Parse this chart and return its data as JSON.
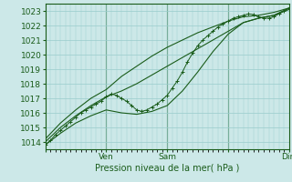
{
  "title": "",
  "xlabel": "Pression niveau de la mer( hPa )",
  "ylabel": "",
  "ylim": [
    1013.5,
    1023.5
  ],
  "xlim": [
    0,
    96
  ],
  "yticks": [
    1014,
    1015,
    1016,
    1017,
    1018,
    1019,
    1020,
    1021,
    1022,
    1023
  ],
  "xtick_positions": [
    0,
    24,
    48,
    72,
    96
  ],
  "xtick_labels": [
    "",
    "Ven",
    "Sam",
    "",
    "Dim"
  ],
  "bg_color": "#cce8e8",
  "grid_color": "#99cccc",
  "line_color": "#1a5c1a",
  "marker_color": "#1a5c1a",
  "series_main": [
    0,
    1013.8,
    2,
    1014.1,
    4,
    1014.5,
    6,
    1014.8,
    8,
    1015.1,
    10,
    1015.4,
    12,
    1015.7,
    14,
    1016.0,
    16,
    1016.2,
    18,
    1016.4,
    20,
    1016.6,
    22,
    1016.8,
    24,
    1017.1,
    26,
    1017.3,
    28,
    1017.2,
    30,
    1017.0,
    32,
    1016.8,
    34,
    1016.5,
    36,
    1016.2,
    38,
    1016.1,
    40,
    1016.2,
    42,
    1016.4,
    44,
    1016.6,
    46,
    1016.9,
    48,
    1017.2,
    50,
    1017.7,
    52,
    1018.2,
    54,
    1018.8,
    56,
    1019.5,
    58,
    1020.1,
    60,
    1020.6,
    62,
    1021.0,
    64,
    1021.3,
    66,
    1021.6,
    68,
    1021.9,
    70,
    1022.1,
    72,
    1022.3,
    74,
    1022.5,
    76,
    1022.6,
    78,
    1022.7,
    80,
    1022.8,
    82,
    1022.75,
    84,
    1022.6,
    86,
    1022.5,
    88,
    1022.5,
    90,
    1022.6,
    92,
    1022.8,
    94,
    1023.0,
    96,
    1023.2
  ],
  "series_high_early": [
    0,
    1014.2,
    6,
    1015.3,
    12,
    1016.2,
    18,
    1017.0,
    24,
    1017.6,
    30,
    1018.5,
    36,
    1019.2,
    42,
    1019.9,
    48,
    1020.5,
    54,
    1021.0,
    60,
    1021.5,
    66,
    1021.9,
    72,
    1022.3,
    78,
    1022.6,
    84,
    1022.7,
    90,
    1022.9,
    96,
    1023.2
  ],
  "series_mid1": [
    0,
    1014.0,
    6,
    1015.0,
    12,
    1015.8,
    18,
    1016.5,
    24,
    1017.1,
    30,
    1017.5,
    36,
    1018.0,
    42,
    1018.6,
    48,
    1019.2,
    54,
    1019.8,
    60,
    1020.4,
    66,
    1021.0,
    72,
    1021.6,
    78,
    1022.2,
    84,
    1022.5,
    90,
    1022.7,
    96,
    1023.2
  ],
  "series_low_late": [
    0,
    1013.8,
    6,
    1014.6,
    12,
    1015.3,
    18,
    1015.8,
    24,
    1016.2,
    30,
    1016.0,
    36,
    1015.9,
    42,
    1016.1,
    48,
    1016.5,
    54,
    1017.5,
    60,
    1018.8,
    66,
    1020.2,
    72,
    1021.4,
    78,
    1022.2,
    84,
    1022.5,
    90,
    1022.7,
    96,
    1023.1
  ]
}
